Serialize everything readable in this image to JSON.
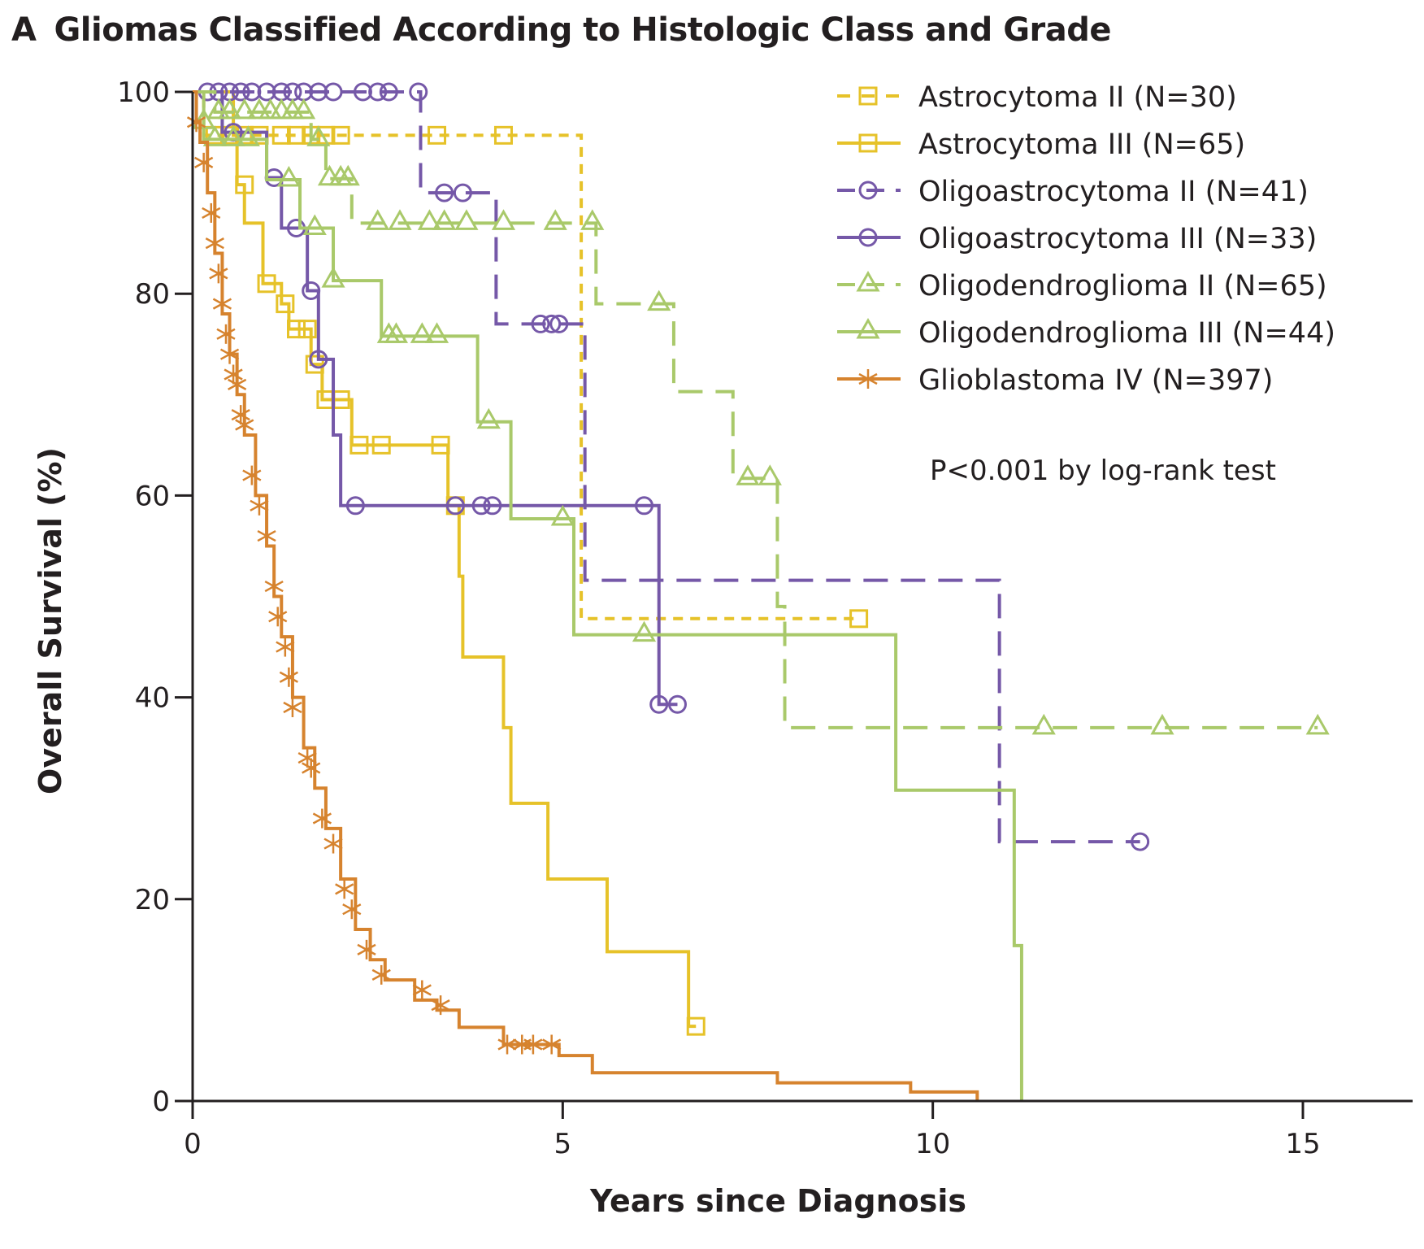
{
  "chart_data": {
    "type": "line",
    "subtype": "kaplan-meier",
    "panel_label": "A",
    "title": "Gliomas Classified According to Histologic Class and Grade",
    "xlabel": "Years since Diagnosis",
    "ylabel": "Overall Survival (%)",
    "xlim": [
      0,
      16.5
    ],
    "ylim": [
      0,
      100
    ],
    "xticks": [
      0,
      5,
      10,
      15
    ],
    "yticks": [
      0,
      20,
      40,
      60,
      80,
      100
    ],
    "grid": false,
    "legend_position": "top-right",
    "annotation": "P<0.001 by log-rank test",
    "series": [
      {
        "name": "Astrocytoma II (N=30)",
        "color": "#E6C229",
        "dash": "short",
        "marker": "square",
        "steps": [
          [
            0,
            100
          ],
          [
            0.15,
            95.7
          ],
          [
            5.25,
            47.8
          ],
          [
            9.0,
            47.8
          ]
        ],
        "censored": [
          [
            0.5,
            95.7
          ],
          [
            0.7,
            95.7
          ],
          [
            0.9,
            95.7
          ],
          [
            1.2,
            95.7
          ],
          [
            1.4,
            95.7
          ],
          [
            1.6,
            95.7
          ],
          [
            1.8,
            95.7
          ],
          [
            2.0,
            95.7
          ],
          [
            3.3,
            95.7
          ],
          [
            4.2,
            95.7
          ],
          [
            9.0,
            47.8
          ]
        ]
      },
      {
        "name": "Astrocytoma III (N=65)",
        "color": "#E6C229",
        "dash": "solid",
        "marker": "square",
        "steps": [
          [
            0,
            100
          ],
          [
            0.55,
            95.7
          ],
          [
            0.6,
            90.8
          ],
          [
            0.7,
            87
          ],
          [
            0.95,
            81
          ],
          [
            1.2,
            79
          ],
          [
            1.3,
            76.5
          ],
          [
            1.6,
            73
          ],
          [
            1.75,
            69.5
          ],
          [
            2.15,
            65
          ],
          [
            3.45,
            59
          ],
          [
            3.6,
            52
          ],
          [
            3.65,
            44
          ],
          [
            4.2,
            37
          ],
          [
            4.3,
            29.5
          ],
          [
            4.8,
            22
          ],
          [
            5.6,
            14.8
          ],
          [
            6.7,
            7.4
          ],
          [
            6.8,
            7.4
          ]
        ],
        "censored": [
          [
            0.3,
            95.7
          ],
          [
            0.7,
            90.8
          ],
          [
            1.0,
            81
          ],
          [
            1.25,
            79
          ],
          [
            1.4,
            76.5
          ],
          [
            1.55,
            76.5
          ],
          [
            1.65,
            73
          ],
          [
            1.8,
            69.5
          ],
          [
            2.0,
            69.5
          ],
          [
            2.25,
            65
          ],
          [
            2.55,
            65
          ],
          [
            3.35,
            65
          ],
          [
            3.55,
            59
          ],
          [
            6.8,
            7.4
          ]
        ]
      },
      {
        "name": "Oligoastrocytoma II (N=41)",
        "color": "#7558A8",
        "dash": "long",
        "marker": "circle",
        "steps": [
          [
            0,
            100
          ],
          [
            3.08,
            90
          ],
          [
            4.1,
            77
          ],
          [
            5.3,
            51.6
          ],
          [
            10.9,
            25.7
          ],
          [
            12.8,
            25.7
          ]
        ],
        "censored": [
          [
            0.2,
            100
          ],
          [
            0.35,
            100
          ],
          [
            0.5,
            100
          ],
          [
            0.65,
            100
          ],
          [
            0.8,
            100
          ],
          [
            1.0,
            100
          ],
          [
            1.2,
            100
          ],
          [
            1.35,
            100
          ],
          [
            1.5,
            100
          ],
          [
            1.7,
            100
          ],
          [
            1.9,
            100
          ],
          [
            2.3,
            100
          ],
          [
            2.5,
            100
          ],
          [
            2.65,
            100
          ],
          [
            3.05,
            100
          ],
          [
            3.4,
            90
          ],
          [
            3.65,
            90
          ],
          [
            4.7,
            77
          ],
          [
            4.85,
            77
          ],
          [
            4.95,
            77
          ],
          [
            12.8,
            25.7
          ]
        ]
      },
      {
        "name": "Oligoastrocytoma III (N=33)",
        "color": "#7558A8",
        "dash": "solid",
        "marker": "circle",
        "steps": [
          [
            0,
            100
          ],
          [
            0.4,
            96
          ],
          [
            1.0,
            91.5
          ],
          [
            1.2,
            86.5
          ],
          [
            1.55,
            80.3
          ],
          [
            1.7,
            73.5
          ],
          [
            1.9,
            66
          ],
          [
            2.0,
            59
          ],
          [
            6.3,
            39.3
          ],
          [
            6.55,
            39.3
          ]
        ],
        "censored": [
          [
            0.55,
            96
          ],
          [
            1.1,
            91.5
          ],
          [
            1.4,
            86.5
          ],
          [
            1.6,
            80.3
          ],
          [
            1.7,
            73.5
          ],
          [
            2.2,
            59
          ],
          [
            3.55,
            59
          ],
          [
            3.9,
            59
          ],
          [
            4.05,
            59
          ],
          [
            6.1,
            59
          ],
          [
            6.3,
            39.3
          ],
          [
            6.55,
            39.3
          ]
        ]
      },
      {
        "name": "Oligodendroglioma II (N=65)",
        "color": "#A9C96A",
        "dash": "long",
        "marker": "triangle",
        "steps": [
          [
            0,
            100
          ],
          [
            0.3,
            98
          ],
          [
            1.6,
            95.3
          ],
          [
            1.8,
            91.4
          ],
          [
            2.15,
            87
          ],
          [
            5.45,
            79
          ],
          [
            6.5,
            70.3
          ],
          [
            7.3,
            61.7
          ],
          [
            7.9,
            49
          ],
          [
            8.0,
            37
          ],
          [
            15.2,
            37
          ]
        ],
        "censored": [
          [
            0.35,
            98
          ],
          [
            0.5,
            98
          ],
          [
            0.7,
            98
          ],
          [
            0.9,
            98
          ],
          [
            1.05,
            98
          ],
          [
            1.2,
            98
          ],
          [
            1.35,
            98
          ],
          [
            1.5,
            98
          ],
          [
            1.7,
            95.3
          ],
          [
            1.85,
            91.4
          ],
          [
            2.0,
            91.4
          ],
          [
            2.1,
            91.4
          ],
          [
            2.5,
            87
          ],
          [
            2.8,
            87
          ],
          [
            3.2,
            87
          ],
          [
            3.4,
            87
          ],
          [
            3.7,
            87
          ],
          [
            4.2,
            87
          ],
          [
            4.9,
            87
          ],
          [
            5.4,
            87
          ],
          [
            6.3,
            79
          ],
          [
            7.5,
            61.7
          ],
          [
            7.8,
            61.7
          ],
          [
            11.5,
            37
          ],
          [
            13.1,
            37
          ],
          [
            15.2,
            37
          ]
        ]
      },
      {
        "name": "Oligodendroglioma III (N=44)",
        "color": "#A9C96A",
        "dash": "solid",
        "marker": "triangle",
        "steps": [
          [
            0,
            100
          ],
          [
            0.15,
            95.3
          ],
          [
            1.0,
            91.3
          ],
          [
            1.45,
            86.5
          ],
          [
            1.9,
            81.3
          ],
          [
            2.55,
            75.8
          ],
          [
            3.85,
            67.3
          ],
          [
            4.3,
            57.7
          ],
          [
            5.15,
            46.2
          ],
          [
            9.5,
            30.8
          ],
          [
            11.1,
            15.4
          ],
          [
            11.2,
            0
          ]
        ],
        "censored": [
          [
            0.15,
            97
          ],
          [
            0.3,
            95.3
          ],
          [
            0.55,
            95.3
          ],
          [
            0.75,
            95.3
          ],
          [
            1.3,
            91.3
          ],
          [
            1.65,
            86.5
          ],
          [
            1.9,
            81.3
          ],
          [
            2.65,
            75.8
          ],
          [
            2.75,
            75.8
          ],
          [
            3.1,
            75.8
          ],
          [
            3.3,
            75.8
          ],
          [
            4.0,
            67.3
          ],
          [
            5.0,
            57.7
          ],
          [
            6.1,
            46.2
          ]
        ]
      },
      {
        "name": "Glioblastoma IV (N=397)",
        "color": "#D6832E",
        "dash": "solid",
        "marker": "asterisk",
        "steps": [
          [
            0,
            100
          ],
          [
            0.05,
            97
          ],
          [
            0.1,
            95
          ],
          [
            0.2,
            90
          ],
          [
            0.3,
            84
          ],
          [
            0.4,
            78
          ],
          [
            0.5,
            74
          ],
          [
            0.6,
            70
          ],
          [
            0.7,
            66
          ],
          [
            0.85,
            60
          ],
          [
            1.0,
            55
          ],
          [
            1.1,
            50
          ],
          [
            1.2,
            46
          ],
          [
            1.35,
            40
          ],
          [
            1.5,
            35
          ],
          [
            1.65,
            31
          ],
          [
            1.8,
            27
          ],
          [
            2.0,
            22
          ],
          [
            2.2,
            17
          ],
          [
            2.4,
            14
          ],
          [
            2.6,
            12
          ],
          [
            3.0,
            10
          ],
          [
            3.3,
            9
          ],
          [
            3.6,
            7.3
          ],
          [
            4.2,
            5.6
          ],
          [
            4.95,
            4.5
          ],
          [
            5.4,
            2.8
          ],
          [
            7.9,
            1.8
          ],
          [
            9.7,
            0.9
          ],
          [
            10.6,
            0
          ]
        ],
        "censored": [
          [
            0.05,
            97
          ],
          [
            0.15,
            93
          ],
          [
            0.25,
            88
          ],
          [
            0.3,
            85
          ],
          [
            0.35,
            82
          ],
          [
            0.4,
            79
          ],
          [
            0.45,
            76
          ],
          [
            0.5,
            74
          ],
          [
            0.55,
            72
          ],
          [
            0.6,
            71
          ],
          [
            0.65,
            68
          ],
          [
            0.7,
            67
          ],
          [
            0.8,
            62
          ],
          [
            0.9,
            59
          ],
          [
            1.0,
            56
          ],
          [
            1.1,
            51
          ],
          [
            1.15,
            48
          ],
          [
            1.25,
            45
          ],
          [
            1.3,
            42
          ],
          [
            1.35,
            39
          ],
          [
            1.55,
            34
          ],
          [
            1.6,
            33
          ],
          [
            1.75,
            28
          ],
          [
            1.9,
            25.5
          ],
          [
            2.05,
            21
          ],
          [
            2.15,
            19
          ],
          [
            2.35,
            15
          ],
          [
            2.55,
            12.5
          ],
          [
            3.1,
            11
          ],
          [
            3.35,
            9.5
          ],
          [
            4.25,
            5.6
          ],
          [
            4.45,
            5.6
          ],
          [
            4.6,
            5.6
          ],
          [
            4.85,
            5.6
          ]
        ]
      }
    ]
  }
}
